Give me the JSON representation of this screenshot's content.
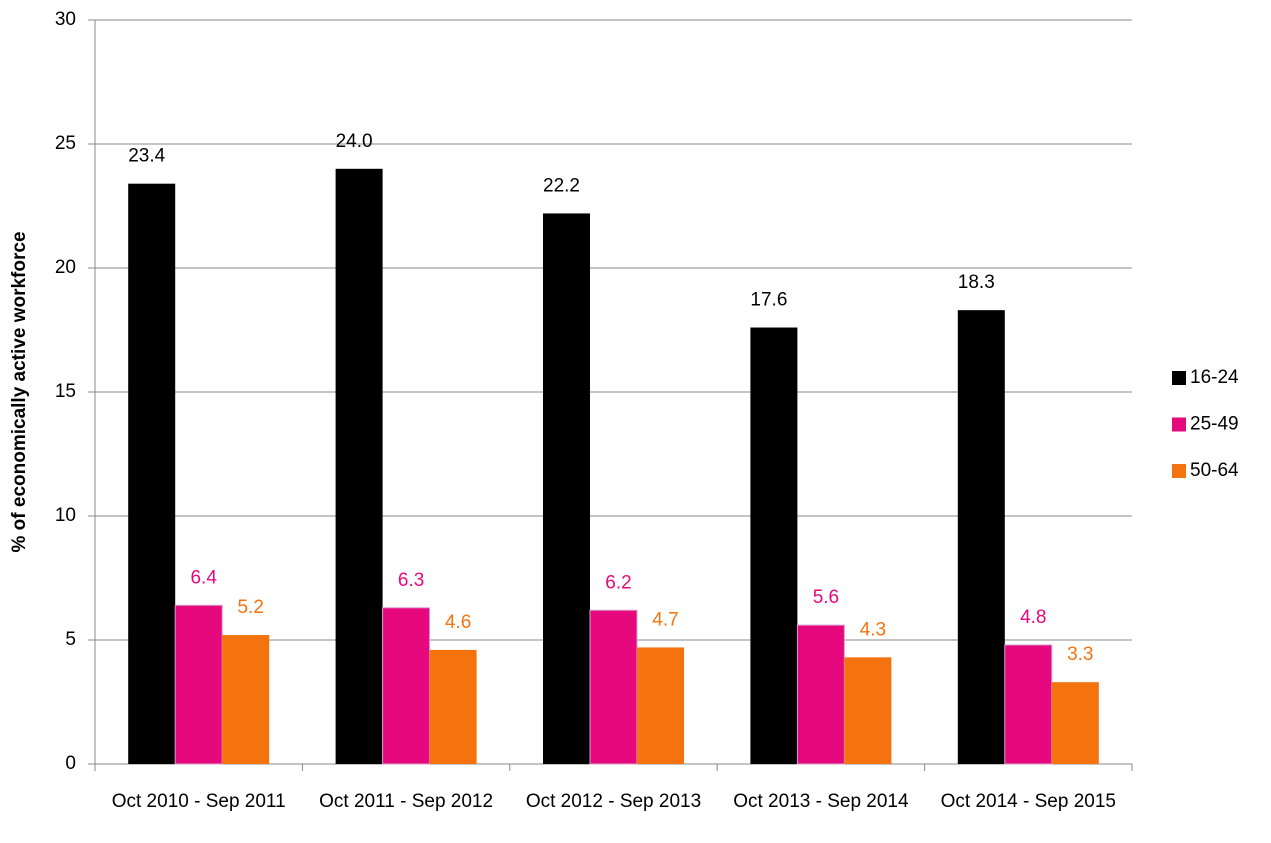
{
  "chart_data": {
    "type": "bar",
    "y_axis_label": "% of economically active workforce",
    "categories": [
      "Oct 2010 - Sep 2011",
      "Oct 2011 - Sep 2012",
      "Oct 2012 - Sep 2013",
      "Oct 2013 - Sep 2014",
      "Oct 2014 - Sep 2015"
    ],
    "series": [
      {
        "name": "16-24",
        "color": "#000000",
        "values": [
          23.4,
          24.0,
          22.2,
          17.6,
          18.3
        ],
        "value_labels": [
          "23.4",
          "24.0",
          "22.2",
          "17.6",
          "18.3"
        ],
        "label_color": "#000000"
      },
      {
        "name": "25-49",
        "color": "#e6097e",
        "values": [
          6.4,
          6.3,
          6.2,
          5.6,
          4.8
        ],
        "value_labels": [
          "6.4",
          "6.3",
          "6.2",
          "5.6",
          "4.8"
        ],
        "label_color": "#e6097e"
      },
      {
        "name": "50-64",
        "color": "#f5730e",
        "values": [
          5.2,
          4.6,
          4.7,
          4.3,
          3.3
        ],
        "value_labels": [
          "5.2",
          "4.6",
          "4.7",
          "4.3",
          "3.3"
        ],
        "label_color": "#f5730e"
      }
    ],
    "ylim": [
      0,
      30
    ],
    "yticks": [
      0,
      5,
      10,
      15,
      20,
      25,
      30
    ],
    "grid": true,
    "legend": "right"
  }
}
